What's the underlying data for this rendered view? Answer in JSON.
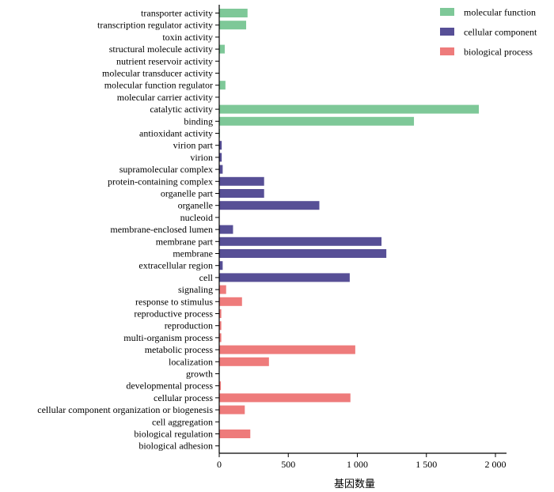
{
  "chart_data": {
    "type": "bar",
    "orientation": "horizontal",
    "xlabel": "基因数量",
    "ylabel": "",
    "xlim": [
      0,
      2000
    ],
    "xticks": [
      0,
      500,
      1000,
      1500,
      2000
    ],
    "xtick_labels": [
      "0",
      "500",
      "1 000",
      "1 500",
      "2 000"
    ],
    "legend_position": "top-right",
    "grid": false,
    "series": [
      {
        "name": "molecular function",
        "color": "#7ec898"
      },
      {
        "name": "cellular component",
        "color": "#574f96"
      },
      {
        "name": "biological process",
        "color": "#ee7b7b"
      }
    ],
    "categories": [
      {
        "label": "transporter activity",
        "value": 205,
        "series": 0
      },
      {
        "label": "transcription regulator activity",
        "value": 195,
        "series": 0
      },
      {
        "label": "toxin activity",
        "value": 0,
        "series": 0
      },
      {
        "label": "structural molecule activity",
        "value": 40,
        "series": 0
      },
      {
        "label": "nutrient reservoir activity",
        "value": 2,
        "series": 0
      },
      {
        "label": "molecular transducer activity",
        "value": 3,
        "series": 0
      },
      {
        "label": "molecular function regulator",
        "value": 45,
        "series": 0
      },
      {
        "label": "molecular carrier activity",
        "value": 0,
        "series": 0
      },
      {
        "label": "catalytic activity",
        "value": 1880,
        "series": 0
      },
      {
        "label": "binding",
        "value": 1410,
        "series": 0
      },
      {
        "label": "antioxidant activity",
        "value": 5,
        "series": 0
      },
      {
        "label": "virion part",
        "value": 18,
        "series": 1
      },
      {
        "label": "virion",
        "value": 18,
        "series": 1
      },
      {
        "label": "supramolecular complex",
        "value": 25,
        "series": 1
      },
      {
        "label": "protein-containing complex",
        "value": 325,
        "series": 1
      },
      {
        "label": "organelle part",
        "value": 325,
        "series": 1
      },
      {
        "label": "organelle",
        "value": 725,
        "series": 1
      },
      {
        "label": "nucleoid",
        "value": 3,
        "series": 1
      },
      {
        "label": "membrane-enclosed lumen",
        "value": 100,
        "series": 1
      },
      {
        "label": "membrane part",
        "value": 1175,
        "series": 1
      },
      {
        "label": "membrane",
        "value": 1210,
        "series": 1
      },
      {
        "label": "extracellular region",
        "value": 25,
        "series": 1
      },
      {
        "label": "cell",
        "value": 945,
        "series": 1
      },
      {
        "label": "signaling",
        "value": 50,
        "series": 2
      },
      {
        "label": "response to stimulus",
        "value": 165,
        "series": 2
      },
      {
        "label": "reproductive process",
        "value": 15,
        "series": 2
      },
      {
        "label": "reproduction",
        "value": 15,
        "series": 2
      },
      {
        "label": "multi-organism process",
        "value": 15,
        "series": 2
      },
      {
        "label": "metabolic process",
        "value": 985,
        "series": 2
      },
      {
        "label": "localization",
        "value": 360,
        "series": 2
      },
      {
        "label": "growth",
        "value": 2,
        "series": 2
      },
      {
        "label": "developmental process",
        "value": 12,
        "series": 2
      },
      {
        "label": "cellular process",
        "value": 950,
        "series": 2
      },
      {
        "label": "cellular component organization or biogenesis",
        "value": 185,
        "series": 2
      },
      {
        "label": "cell aggregation",
        "value": 2,
        "series": 2
      },
      {
        "label": "biological regulation",
        "value": 225,
        "series": 2
      },
      {
        "label": "biological adhesion",
        "value": 3,
        "series": 2
      }
    ]
  }
}
